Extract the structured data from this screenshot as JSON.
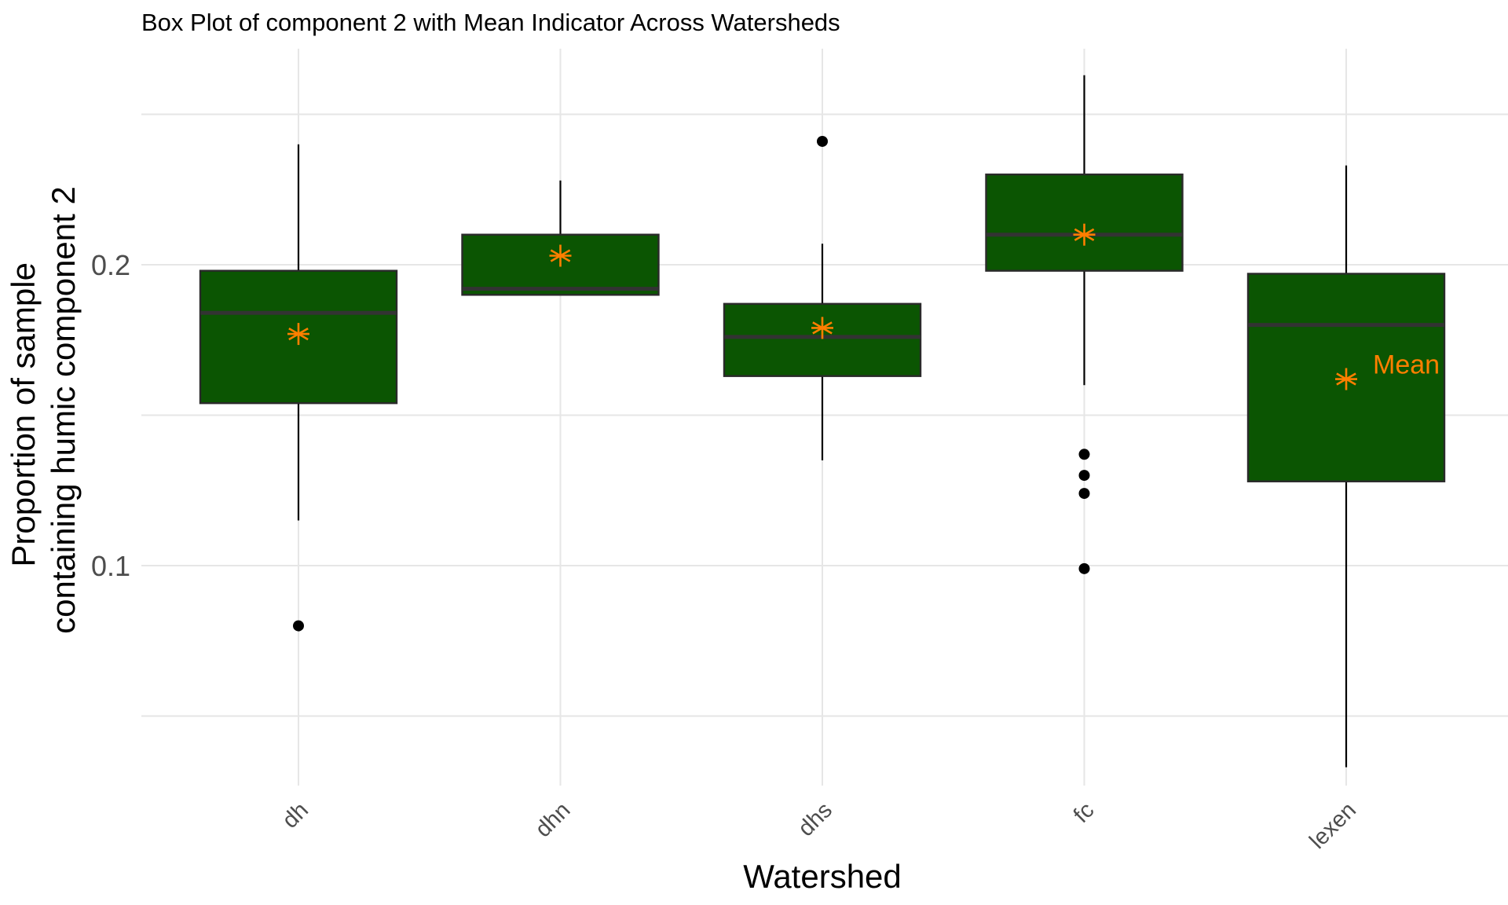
{
  "chart_data": {
    "type": "box",
    "title": "Box Plot of component 2 with Mean Indicator Across Watersheds",
    "xlabel": "Watershed",
    "ylabel_lines": [
      "Proportion of sample",
      "containing humic component 2"
    ],
    "ylim": [
      0.025,
      0.265
    ],
    "y_ticks": [
      0.1,
      0.2
    ],
    "y_tick_labels": [
      "0.1",
      "0.2"
    ],
    "y_minor_gridlines": [
      0.05,
      0.15,
      0.25
    ],
    "grid": true,
    "categories": [
      "dh",
      "dhn",
      "dhs",
      "fc",
      "lexen"
    ],
    "series": [
      {
        "category": "dh",
        "whisker_low": 0.115,
        "q1": 0.154,
        "median": 0.184,
        "q3": 0.198,
        "whisker_high": 0.24,
        "mean": 0.177,
        "outliers": [
          0.08
        ]
      },
      {
        "category": "dhn",
        "whisker_low": 0.19,
        "q1": 0.19,
        "median": 0.192,
        "q3": 0.21,
        "whisker_high": 0.228,
        "mean": 0.203,
        "outliers": []
      },
      {
        "category": "dhs",
        "whisker_low": 0.135,
        "q1": 0.163,
        "median": 0.176,
        "q3": 0.187,
        "whisker_high": 0.207,
        "mean": 0.179,
        "outliers": [
          0.241
        ]
      },
      {
        "category": "fc",
        "whisker_low": 0.16,
        "q1": 0.198,
        "median": 0.21,
        "q3": 0.23,
        "whisker_high": 0.263,
        "mean": 0.21,
        "outliers": [
          0.137,
          0.13,
          0.124,
          0.099
        ]
      },
      {
        "category": "lexen",
        "whisker_low": 0.033,
        "q1": 0.128,
        "median": 0.18,
        "q3": 0.197,
        "whisker_high": 0.233,
        "mean": 0.162,
        "outliers": []
      }
    ],
    "mean_annotation": {
      "text": "Mean",
      "category": "lexen",
      "y": 0.167
    },
    "colors": {
      "box_fill": "#0b5502",
      "box_stroke": "#2a2a2a",
      "median": "#333333",
      "whisker": "#000000",
      "outlier": "#000000",
      "mean": "#ff7f00",
      "grid": "#e6e6e6"
    }
  }
}
